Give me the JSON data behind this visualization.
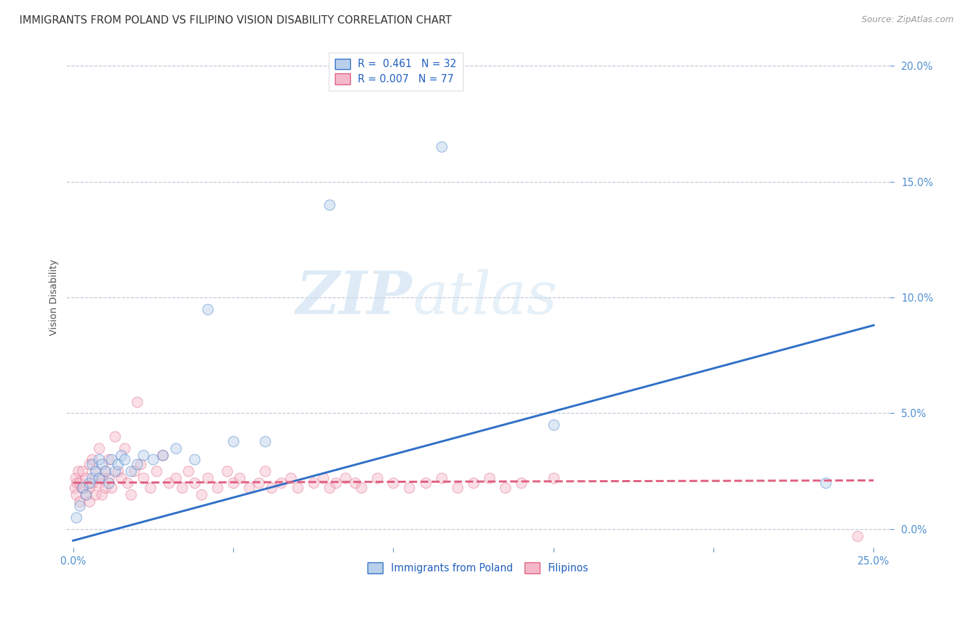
{
  "title": "IMMIGRANTS FROM POLAND VS FILIPINO VISION DISABILITY CORRELATION CHART",
  "source": "Source: ZipAtlas.com",
  "ylabel": "Vision Disability",
  "legend_label_blue": "Immigrants from Poland",
  "legend_label_pink": "Filipinos",
  "legend_R_blue": "R =  0.461",
  "legend_N_blue": "N = 32",
  "legend_R_pink": "R = 0.007",
  "legend_N_pink": "N = 77",
  "xlim": [
    -0.002,
    0.255
  ],
  "ylim": [
    -0.008,
    0.208
  ],
  "xticks": [
    0.0,
    0.05,
    0.1,
    0.15,
    0.2,
    0.25
  ],
  "yticks": [
    0.0,
    0.05,
    0.1,
    0.15,
    0.2
  ],
  "blue_color": "#b8d0ea",
  "pink_color": "#f5b8c8",
  "blue_line_color": "#3070c8",
  "pink_line_color": "#e06080",
  "background_color": "#ffffff",
  "grid_color": "#c0c8d8",
  "blue_scatter_x": [
    0.001,
    0.002,
    0.003,
    0.004,
    0.005,
    0.006,
    0.006,
    0.007,
    0.008,
    0.008,
    0.009,
    0.01,
    0.011,
    0.012,
    0.013,
    0.014,
    0.015,
    0.016,
    0.018,
    0.02,
    0.022,
    0.025,
    0.028,
    0.032,
    0.038,
    0.042,
    0.05,
    0.06,
    0.08,
    0.115,
    0.15,
    0.235
  ],
  "blue_scatter_y": [
    0.005,
    0.01,
    0.018,
    0.015,
    0.02,
    0.022,
    0.028,
    0.025,
    0.03,
    0.022,
    0.028,
    0.025,
    0.02,
    0.03,
    0.025,
    0.028,
    0.032,
    0.03,
    0.025,
    0.028,
    0.032,
    0.03,
    0.032,
    0.035,
    0.03,
    0.095,
    0.038,
    0.038,
    0.14,
    0.165,
    0.045,
    0.02
  ],
  "pink_scatter_x": [
    0.0005,
    0.0008,
    0.001,
    0.0012,
    0.0015,
    0.002,
    0.002,
    0.003,
    0.003,
    0.004,
    0.004,
    0.005,
    0.005,
    0.005,
    0.006,
    0.006,
    0.007,
    0.007,
    0.008,
    0.008,
    0.009,
    0.009,
    0.01,
    0.01,
    0.011,
    0.011,
    0.012,
    0.013,
    0.014,
    0.015,
    0.016,
    0.017,
    0.018,
    0.019,
    0.02,
    0.021,
    0.022,
    0.024,
    0.026,
    0.028,
    0.03,
    0.032,
    0.034,
    0.036,
    0.038,
    0.04,
    0.042,
    0.045,
    0.048,
    0.05,
    0.052,
    0.055,
    0.058,
    0.06,
    0.062,
    0.065,
    0.068,
    0.07,
    0.075,
    0.078,
    0.08,
    0.082,
    0.085,
    0.088,
    0.09,
    0.095,
    0.1,
    0.105,
    0.11,
    0.115,
    0.12,
    0.125,
    0.13,
    0.135,
    0.14,
    0.15,
    0.245
  ],
  "pink_scatter_y": [
    0.018,
    0.022,
    0.015,
    0.02,
    0.025,
    0.012,
    0.02,
    0.018,
    0.025,
    0.015,
    0.022,
    0.028,
    0.018,
    0.012,
    0.02,
    0.03,
    0.025,
    0.015,
    0.02,
    0.035,
    0.022,
    0.015,
    0.025,
    0.018,
    0.03,
    0.022,
    0.018,
    0.04,
    0.025,
    0.022,
    0.035,
    0.02,
    0.015,
    0.025,
    0.055,
    0.028,
    0.022,
    0.018,
    0.025,
    0.032,
    0.02,
    0.022,
    0.018,
    0.025,
    0.02,
    0.015,
    0.022,
    0.018,
    0.025,
    0.02,
    0.022,
    0.018,
    0.02,
    0.025,
    0.018,
    0.02,
    0.022,
    0.018,
    0.02,
    0.022,
    0.018,
    0.02,
    0.022,
    0.02,
    0.018,
    0.022,
    0.02,
    0.018,
    0.02,
    0.022,
    0.018,
    0.02,
    0.022,
    0.018,
    0.02,
    0.022,
    -0.003
  ],
  "blue_line_x": [
    0.0,
    0.25
  ],
  "blue_line_y_start": -0.005,
  "blue_line_y_end": 0.088,
  "pink_line_x": [
    0.0,
    0.25
  ],
  "pink_line_y_start": 0.02,
  "pink_line_y_end": 0.021,
  "watermark_zip": "ZIP",
  "watermark_atlas": "atlas",
  "title_fontsize": 11,
  "axis_label_fontsize": 10,
  "tick_fontsize": 10.5,
  "scatter_size": 120,
  "scatter_alpha": 0.45,
  "line_width": 2.2
}
